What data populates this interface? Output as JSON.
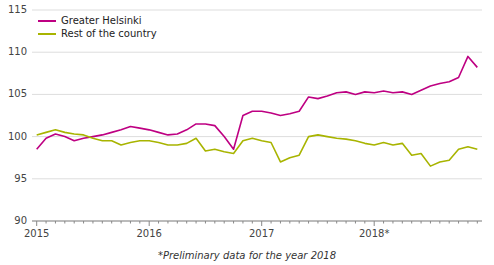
{
  "chart_data": {
    "type": "line",
    "categories": [
      "2015",
      null,
      null,
      null,
      null,
      null,
      null,
      null,
      null,
      null,
      null,
      null,
      "2016",
      null,
      null,
      null,
      null,
      null,
      null,
      null,
      null,
      null,
      null,
      null,
      "2017",
      null,
      null,
      null,
      null,
      null,
      null,
      null,
      null,
      null,
      null,
      null,
      "2018*",
      null,
      null,
      null,
      null,
      null,
      null,
      null,
      null,
      null,
      null,
      null
    ],
    "series": [
      {
        "name": "Greater Helsinki",
        "color": "#be0082",
        "values": [
          98.5,
          99.8,
          100.3,
          100.0,
          99.5,
          99.8,
          100.0,
          100.2,
          100.5,
          100.8,
          101.2,
          101.0,
          100.8,
          100.5,
          100.2,
          100.3,
          100.8,
          101.5,
          101.5,
          101.3,
          100.0,
          98.5,
          102.5,
          103.0,
          103.0,
          102.8,
          102.5,
          102.7,
          103.0,
          104.7,
          104.5,
          104.8,
          105.2,
          105.3,
          105.0,
          105.3,
          105.2,
          105.4,
          105.2,
          105.3,
          105.0,
          105.5,
          106.0,
          106.3,
          106.5,
          107.0,
          109.5,
          108.2
        ]
      },
      {
        "name": "Rest of the country",
        "color": "#a8b400",
        "values": [
          100.2,
          100.5,
          100.8,
          100.5,
          100.3,
          100.2,
          99.8,
          99.5,
          99.5,
          99.0,
          99.3,
          99.5,
          99.5,
          99.3,
          99.0,
          99.0,
          99.2,
          99.8,
          98.3,
          98.5,
          98.2,
          98.0,
          99.5,
          99.8,
          99.5,
          99.3,
          97.0,
          97.5,
          97.8,
          100.0,
          100.2,
          100.0,
          99.8,
          99.7,
          99.5,
          99.2,
          99.0,
          99.3,
          99.0,
          99.2,
          97.8,
          98.0,
          96.5,
          97.0,
          97.2,
          98.5,
          98.8,
          98.5
        ]
      }
    ],
    "ylim": [
      90,
      115
    ],
    "yticks": [
      90,
      95,
      100,
      105,
      110,
      115
    ],
    "grid": true,
    "legend": "upper left",
    "annotations": [
      "*Preliminary data for the year 2018"
    ]
  }
}
